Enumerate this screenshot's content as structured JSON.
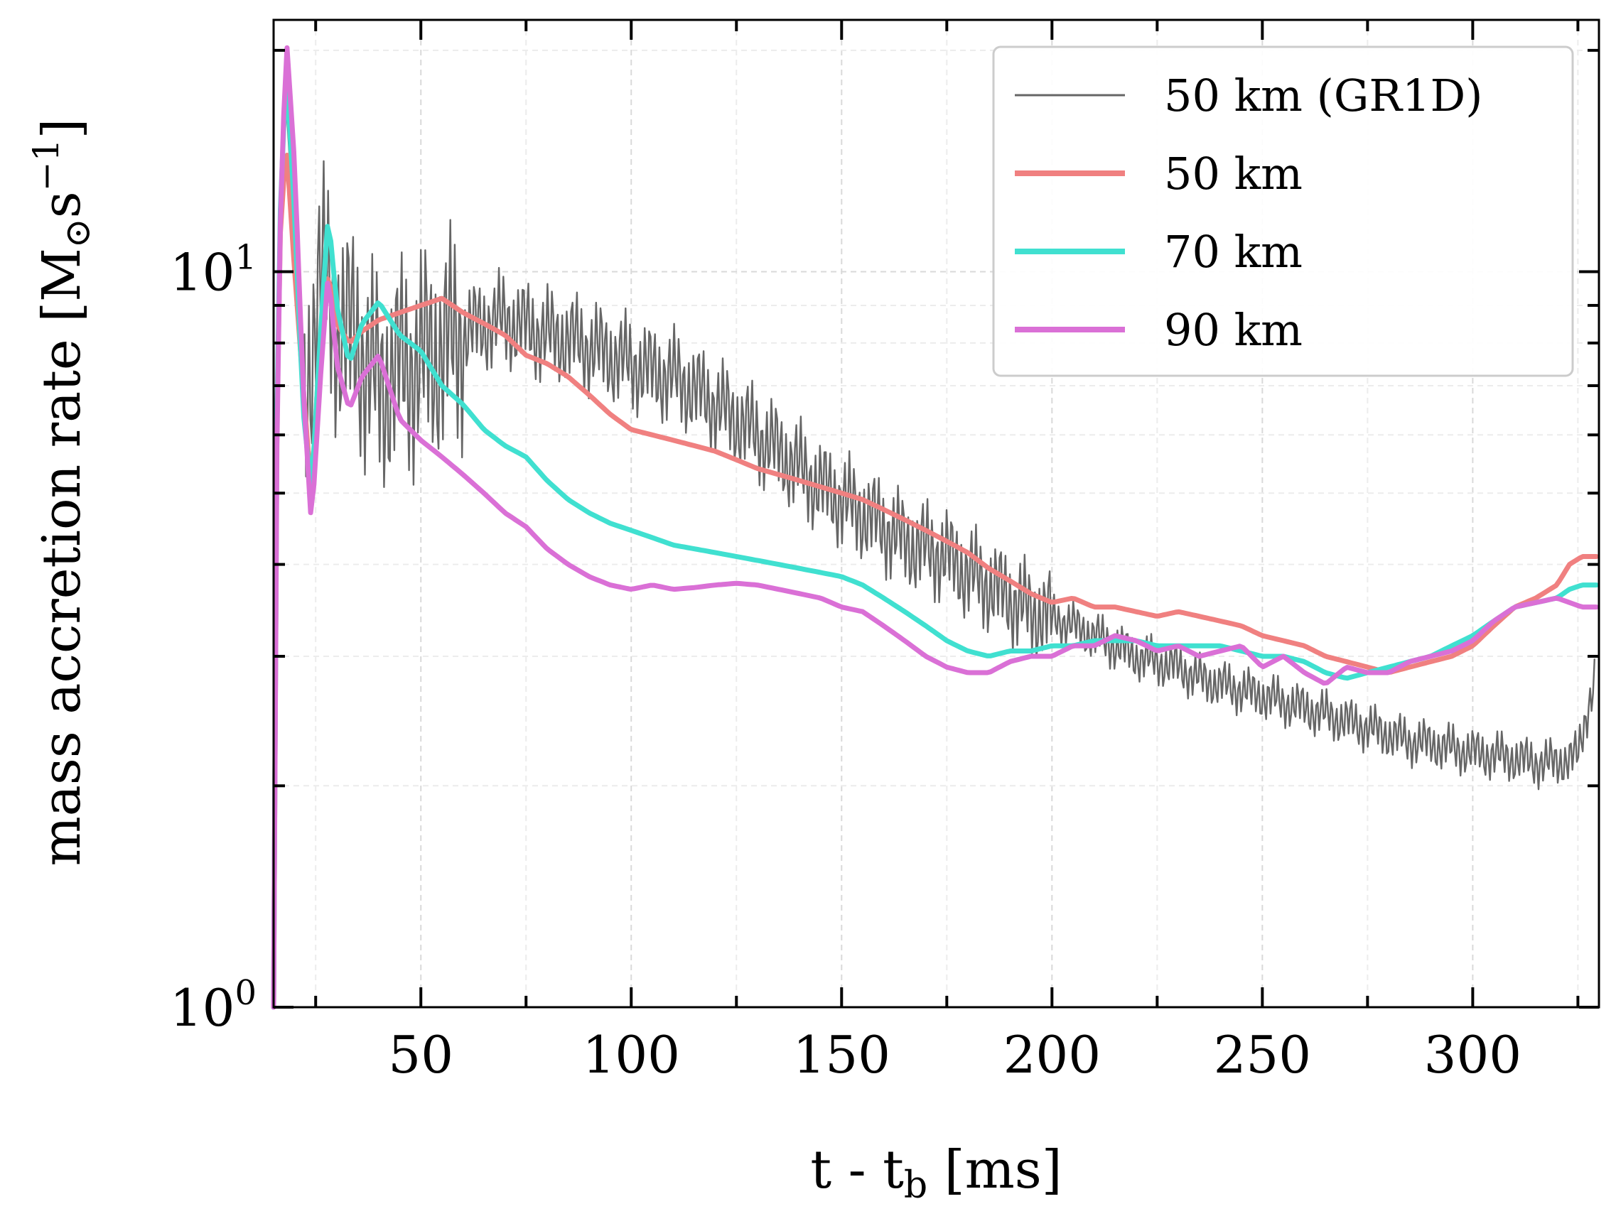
{
  "chart_data": {
    "type": "line",
    "xlabel": "t - t",
    "xlabel_sub": "b",
    "xlabel_unit": "[ms]",
    "ylabel": "mass accretion rate [M",
    "ylabel_sub": "⊙",
    "ylabel_unit": "s",
    "ylabel_exp": "−1",
    "ylabel_close": "]",
    "yscale": "log",
    "xlim": [
      15,
      330
    ],
    "ylim": [
      1,
      22
    ],
    "grid": true,
    "legend_position": "top-right",
    "x_ticks": [
      50,
      100,
      150,
      200,
      250,
      300
    ],
    "y_ticks": [
      {
        "base": "10",
        "exp": "0",
        "value": 1
      },
      {
        "base": "10",
        "exp": "1",
        "value": 10
      }
    ],
    "series": [
      {
        "name": "50 km (GR1D)",
        "color": "#666666",
        "noisy": true,
        "points": [
          [
            15,
            1
          ],
          [
            16,
            10
          ],
          [
            18,
            17
          ],
          [
            20,
            11
          ],
          [
            22,
            6
          ],
          [
            24,
            8
          ],
          [
            26,
            10
          ],
          [
            30,
            8.5
          ],
          [
            35,
            8
          ],
          [
            40,
            7
          ],
          [
            45,
            7.4
          ],
          [
            50,
            7.6
          ],
          [
            55,
            7.9
          ],
          [
            60,
            8.2
          ],
          [
            65,
            8.5
          ],
          [
            70,
            8.6
          ],
          [
            75,
            8.4
          ],
          [
            80,
            8.2
          ],
          [
            85,
            8.1
          ],
          [
            90,
            7.9
          ],
          [
            95,
            7.7
          ],
          [
            100,
            7.5
          ],
          [
            105,
            7.3
          ],
          [
            110,
            7.2
          ],
          [
            115,
            6.9
          ],
          [
            120,
            6.6
          ],
          [
            125,
            6.3
          ],
          [
            130,
            6.0
          ],
          [
            135,
            5.7
          ],
          [
            140,
            5.4
          ],
          [
            145,
            5.1
          ],
          [
            150,
            4.9
          ],
          [
            155,
            4.7
          ],
          [
            160,
            4.5
          ],
          [
            165,
            4.3
          ],
          [
            170,
            4.2
          ],
          [
            175,
            4.1
          ],
          [
            180,
            3.9
          ],
          [
            185,
            3.75
          ],
          [
            190,
            3.6
          ],
          [
            195,
            3.45
          ],
          [
            200,
            3.4
          ],
          [
            205,
            3.3
          ],
          [
            210,
            3.2
          ],
          [
            215,
            3.1
          ],
          [
            220,
            3.0
          ],
          [
            225,
            2.95
          ],
          [
            230,
            2.9
          ],
          [
            235,
            2.8
          ],
          [
            240,
            2.75
          ],
          [
            245,
            2.7
          ],
          [
            250,
            2.65
          ],
          [
            255,
            2.6
          ],
          [
            260,
            2.55
          ],
          [
            265,
            2.5
          ],
          [
            270,
            2.45
          ],
          [
            275,
            2.4
          ],
          [
            280,
            2.35
          ],
          [
            285,
            2.3
          ],
          [
            290,
            2.28
          ],
          [
            295,
            2.25
          ],
          [
            300,
            2.22
          ],
          [
            305,
            2.2
          ],
          [
            310,
            2.18
          ],
          [
            315,
            2.15
          ],
          [
            320,
            2.15
          ],
          [
            325,
            2.2
          ],
          [
            327,
            2.5
          ],
          [
            329,
            2.8
          ]
        ]
      },
      {
        "name": "50 km",
        "color": "#f08080",
        "noisy": false,
        "points": [
          [
            15,
            1
          ],
          [
            16,
            10
          ],
          [
            18,
            15
          ],
          [
            20,
            10
          ],
          [
            22,
            7
          ],
          [
            24,
            5
          ],
          [
            26,
            8
          ],
          [
            28,
            10
          ],
          [
            30,
            8.5
          ],
          [
            33,
            8
          ],
          [
            36,
            8.3
          ],
          [
            40,
            8.6
          ],
          [
            45,
            8.8
          ],
          [
            50,
            9.0
          ],
          [
            55,
            9.2
          ],
          [
            60,
            8.8
          ],
          [
            65,
            8.5
          ],
          [
            70,
            8.2
          ],
          [
            75,
            7.7
          ],
          [
            80,
            7.5
          ],
          [
            85,
            7.2
          ],
          [
            90,
            6.8
          ],
          [
            95,
            6.4
          ],
          [
            100,
            6.1
          ],
          [
            105,
            6.0
          ],
          [
            110,
            5.9
          ],
          [
            115,
            5.8
          ],
          [
            120,
            5.7
          ],
          [
            125,
            5.55
          ],
          [
            130,
            5.4
          ],
          [
            135,
            5.3
          ],
          [
            140,
            5.2
          ],
          [
            145,
            5.1
          ],
          [
            150,
            5.0
          ],
          [
            155,
            4.9
          ],
          [
            160,
            4.75
          ],
          [
            165,
            4.6
          ],
          [
            170,
            4.45
          ],
          [
            175,
            4.3
          ],
          [
            180,
            4.15
          ],
          [
            185,
            3.95
          ],
          [
            190,
            3.8
          ],
          [
            195,
            3.65
          ],
          [
            200,
            3.55
          ],
          [
            205,
            3.6
          ],
          [
            210,
            3.5
          ],
          [
            215,
            3.5
          ],
          [
            220,
            3.45
          ],
          [
            225,
            3.4
          ],
          [
            230,
            3.45
          ],
          [
            235,
            3.4
          ],
          [
            240,
            3.35
          ],
          [
            245,
            3.3
          ],
          [
            250,
            3.2
          ],
          [
            255,
            3.15
          ],
          [
            260,
            3.1
          ],
          [
            265,
            3.0
          ],
          [
            270,
            2.95
          ],
          [
            275,
            2.9
          ],
          [
            280,
            2.85
          ],
          [
            285,
            2.9
          ],
          [
            290,
            2.95
          ],
          [
            295,
            3.0
          ],
          [
            300,
            3.1
          ],
          [
            305,
            3.3
          ],
          [
            310,
            3.5
          ],
          [
            315,
            3.6
          ],
          [
            320,
            3.75
          ],
          [
            323,
            4.0
          ],
          [
            326,
            4.1
          ],
          [
            330,
            4.1
          ]
        ]
      },
      {
        "name": "70 km",
        "color": "#40e0d0",
        "noisy": false,
        "points": [
          [
            15,
            1
          ],
          [
            16,
            10
          ],
          [
            18,
            19
          ],
          [
            20,
            12
          ],
          [
            22,
            6.5
          ],
          [
            24,
            5
          ],
          [
            26,
            8
          ],
          [
            28,
            12
          ],
          [
            30,
            9
          ],
          [
            33,
            7.5
          ],
          [
            36,
            8.5
          ],
          [
            40,
            9.1
          ],
          [
            45,
            8.2
          ],
          [
            50,
            7.8
          ],
          [
            55,
            7.0
          ],
          [
            60,
            6.6
          ],
          [
            65,
            6.1
          ],
          [
            70,
            5.8
          ],
          [
            75,
            5.6
          ],
          [
            80,
            5.2
          ],
          [
            85,
            4.9
          ],
          [
            90,
            4.7
          ],
          [
            95,
            4.55
          ],
          [
            100,
            4.45
          ],
          [
            105,
            4.35
          ],
          [
            110,
            4.25
          ],
          [
            115,
            4.2
          ],
          [
            120,
            4.15
          ],
          [
            125,
            4.1
          ],
          [
            130,
            4.05
          ],
          [
            135,
            4.0
          ],
          [
            140,
            3.95
          ],
          [
            145,
            3.9
          ],
          [
            150,
            3.85
          ],
          [
            155,
            3.75
          ],
          [
            160,
            3.6
          ],
          [
            165,
            3.45
          ],
          [
            170,
            3.3
          ],
          [
            175,
            3.15
          ],
          [
            180,
            3.05
          ],
          [
            185,
            3.0
          ],
          [
            190,
            3.05
          ],
          [
            195,
            3.05
          ],
          [
            200,
            3.1
          ],
          [
            205,
            3.1
          ],
          [
            210,
            3.15
          ],
          [
            215,
            3.15
          ],
          [
            220,
            3.15
          ],
          [
            225,
            3.1
          ],
          [
            230,
            3.1
          ],
          [
            235,
            3.1
          ],
          [
            240,
            3.1
          ],
          [
            245,
            3.05
          ],
          [
            250,
            3.0
          ],
          [
            255,
            3.0
          ],
          [
            260,
            2.95
          ],
          [
            265,
            2.85
          ],
          [
            270,
            2.8
          ],
          [
            275,
            2.85
          ],
          [
            280,
            2.9
          ],
          [
            285,
            2.95
          ],
          [
            290,
            3.0
          ],
          [
            295,
            3.1
          ],
          [
            300,
            3.2
          ],
          [
            305,
            3.35
          ],
          [
            310,
            3.5
          ],
          [
            315,
            3.55
          ],
          [
            320,
            3.6
          ],
          [
            323,
            3.7
          ],
          [
            326,
            3.75
          ],
          [
            330,
            3.75
          ]
        ]
      },
      {
        "name": "90 km",
        "color": "#da70d6",
        "noisy": false,
        "points": [
          [
            15,
            1
          ],
          [
            16,
            9
          ],
          [
            18,
            21
          ],
          [
            20,
            14
          ],
          [
            22,
            7
          ],
          [
            24,
            4.5
          ],
          [
            26,
            7
          ],
          [
            28,
            10
          ],
          [
            30,
            7.5
          ],
          [
            33,
            6.5
          ],
          [
            36,
            7.2
          ],
          [
            40,
            7.7
          ],
          [
            45,
            6.3
          ],
          [
            50,
            5.9
          ],
          [
            55,
            5.6
          ],
          [
            60,
            5.3
          ],
          [
            65,
            5.0
          ],
          [
            70,
            4.7
          ],
          [
            75,
            4.5
          ],
          [
            80,
            4.2
          ],
          [
            85,
            4.0
          ],
          [
            90,
            3.85
          ],
          [
            95,
            3.75
          ],
          [
            100,
            3.7
          ],
          [
            105,
            3.75
          ],
          [
            110,
            3.7
          ],
          [
            115,
            3.72
          ],
          [
            120,
            3.75
          ],
          [
            125,
            3.77
          ],
          [
            130,
            3.75
          ],
          [
            135,
            3.7
          ],
          [
            140,
            3.65
          ],
          [
            145,
            3.6
          ],
          [
            150,
            3.5
          ],
          [
            155,
            3.45
          ],
          [
            160,
            3.3
          ],
          [
            165,
            3.15
          ],
          [
            170,
            3.0
          ],
          [
            175,
            2.9
          ],
          [
            180,
            2.85
          ],
          [
            185,
            2.85
          ],
          [
            190,
            2.95
          ],
          [
            195,
            3.0
          ],
          [
            200,
            3.0
          ],
          [
            205,
            3.1
          ],
          [
            210,
            3.1
          ],
          [
            215,
            3.2
          ],
          [
            220,
            3.15
          ],
          [
            225,
            3.05
          ],
          [
            230,
            3.1
          ],
          [
            235,
            3.0
          ],
          [
            240,
            3.05
          ],
          [
            245,
            3.1
          ],
          [
            250,
            2.9
          ],
          [
            255,
            3.0
          ],
          [
            260,
            2.85
          ],
          [
            265,
            2.75
          ],
          [
            270,
            2.9
          ],
          [
            275,
            2.85
          ],
          [
            280,
            2.85
          ],
          [
            285,
            2.95
          ],
          [
            290,
            3.0
          ],
          [
            295,
            3.05
          ],
          [
            300,
            3.15
          ],
          [
            305,
            3.35
          ],
          [
            310,
            3.5
          ],
          [
            315,
            3.55
          ],
          [
            320,
            3.6
          ],
          [
            323,
            3.55
          ],
          [
            326,
            3.5
          ],
          [
            330,
            3.5
          ]
        ]
      }
    ]
  }
}
